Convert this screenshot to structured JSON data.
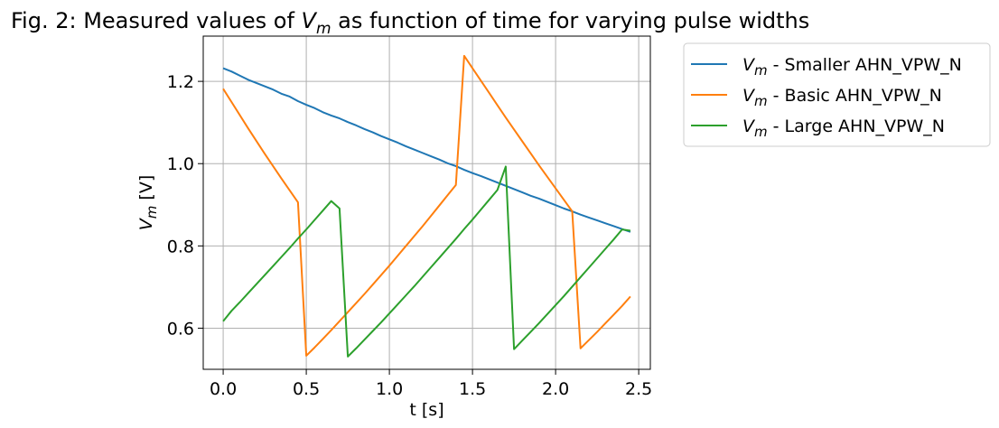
{
  "chart_data": {
    "type": "line",
    "title_prefix": "Fig. 2: Measured values of ",
    "title_suffix": " as function of time for varying pulse widths",
    "math_symbol": "V",
    "math_subscript": "m",
    "xlabel": "t [s]",
    "ylabel_unit": " [V]",
    "xlim": [
      -0.12,
      2.57
    ],
    "ylim": [
      0.5,
      1.31
    ],
    "xticks": [
      0.0,
      0.5,
      1.0,
      1.5,
      2.0,
      2.5
    ],
    "xtick_labels": [
      "0.0",
      "0.5",
      "1.0",
      "1.5",
      "2.0",
      "2.5"
    ],
    "yticks": [
      0.6,
      0.8,
      1.0,
      1.2
    ],
    "ytick_labels": [
      "0.6",
      "0.8",
      "1.0",
      "1.2"
    ],
    "grid": true,
    "legend_position": "outside-right-top",
    "series": [
      {
        "name": " - Smaller AHN_VPW_N",
        "color": "#1f77b4",
        "x": [
          0.0,
          0.05,
          0.1,
          0.15,
          0.2,
          0.25,
          0.3,
          0.35,
          0.4,
          0.45,
          0.5,
          0.55,
          0.6,
          0.65,
          0.7,
          0.75,
          0.8,
          0.85,
          0.9,
          0.95,
          1.0,
          1.05,
          1.1,
          1.15,
          1.2,
          1.25,
          1.3,
          1.35,
          1.4,
          1.45,
          1.5,
          1.55,
          1.6,
          1.65,
          1.7,
          1.75,
          1.8,
          1.85,
          1.9,
          1.95,
          2.0,
          2.05,
          2.1,
          2.15,
          2.2,
          2.25,
          2.3,
          2.35,
          2.4,
          2.45
        ],
        "y": [
          1.232,
          1.224,
          1.214,
          1.204,
          1.196,
          1.188,
          1.18,
          1.17,
          1.163,
          1.152,
          1.143,
          1.135,
          1.125,
          1.117,
          1.11,
          1.101,
          1.093,
          1.084,
          1.076,
          1.067,
          1.059,
          1.051,
          1.042,
          1.034,
          1.026,
          1.018,
          1.01,
          1.001,
          0.994,
          0.985,
          0.977,
          0.97,
          0.962,
          0.954,
          0.946,
          0.938,
          0.93,
          0.922,
          0.915,
          0.907,
          0.899,
          0.891,
          0.884,
          0.876,
          0.869,
          0.862,
          0.855,
          0.848,
          0.841,
          0.834
        ]
      },
      {
        "name": " - Basic AHN_VPW_N",
        "color": "#ff7f0e",
        "x": [
          0.0,
          0.05,
          0.1,
          0.15,
          0.2,
          0.25,
          0.3,
          0.35,
          0.4,
          0.45,
          0.5,
          0.55,
          0.6,
          0.65,
          0.7,
          0.75,
          0.8,
          0.85,
          0.9,
          0.95,
          1.0,
          1.05,
          1.1,
          1.15,
          1.2,
          1.25,
          1.3,
          1.35,
          1.4,
          1.45,
          1.5,
          1.55,
          1.6,
          1.65,
          1.7,
          1.75,
          1.8,
          1.85,
          1.9,
          1.95,
          2.0,
          2.05,
          2.1,
          2.15,
          2.2,
          2.25,
          2.3,
          2.35,
          2.4,
          2.45
        ],
        "y": [
          1.182,
          1.15,
          1.118,
          1.086,
          1.055,
          1.024,
          0.994,
          0.964,
          0.935,
          0.906,
          0.533,
          0.553,
          0.574,
          0.595,
          0.617,
          0.639,
          0.661,
          0.683,
          0.706,
          0.729,
          0.752,
          0.776,
          0.8,
          0.824,
          0.848,
          0.873,
          0.898,
          0.923,
          0.948,
          1.262,
          1.232,
          1.202,
          1.172,
          1.142,
          1.112,
          1.083,
          1.054,
          1.025,
          0.996,
          0.968,
          0.94,
          0.912,
          0.884,
          0.551,
          0.571,
          0.591,
          0.612,
          0.633,
          0.654,
          0.677
        ]
      },
      {
        "name": " - Large AHN_VPW_N",
        "color": "#2ca02c",
        "x": [
          0.0,
          0.05,
          0.1,
          0.15,
          0.2,
          0.25,
          0.3,
          0.35,
          0.4,
          0.45,
          0.5,
          0.55,
          0.6,
          0.65,
          0.7,
          0.75,
          0.8,
          0.85,
          0.9,
          0.95,
          1.0,
          1.05,
          1.1,
          1.15,
          1.2,
          1.25,
          1.3,
          1.35,
          1.4,
          1.45,
          1.5,
          1.55,
          1.6,
          1.65,
          1.7,
          1.75,
          1.8,
          1.85,
          1.9,
          1.95,
          2.0,
          2.05,
          2.1,
          2.15,
          2.2,
          2.25,
          2.3,
          2.35,
          2.4,
          2.45
        ],
        "y": [
          0.617,
          0.642,
          0.663,
          0.685,
          0.707,
          0.729,
          0.751,
          0.773,
          0.795,
          0.818,
          0.84,
          0.863,
          0.886,
          0.909,
          0.891,
          0.531,
          0.551,
          0.572,
          0.593,
          0.614,
          0.636,
          0.658,
          0.68,
          0.702,
          0.725,
          0.748,
          0.771,
          0.794,
          0.817,
          0.841,
          0.864,
          0.888,
          0.912,
          0.936,
          0.993,
          0.549,
          0.57,
          0.591,
          0.612,
          0.634,
          0.656,
          0.678,
          0.701,
          0.724,
          0.747,
          0.77,
          0.793,
          0.816,
          0.84,
          0.837
        ]
      }
    ]
  }
}
